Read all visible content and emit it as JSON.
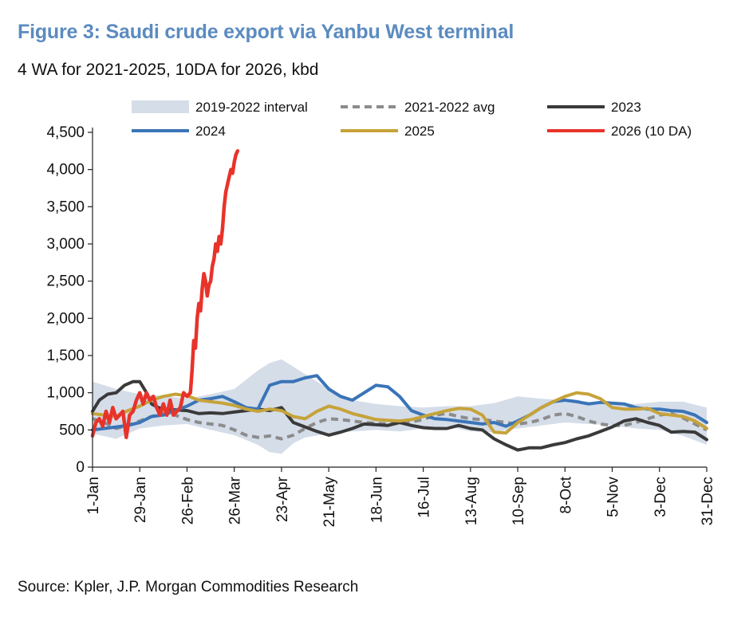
{
  "title": "Figure 3: Saudi crude export via Yanbu West terminal",
  "subtitle": "4 WA for 2021-2025, 10DA for 2026, kbd",
  "source": "Source: Kpler, J.P. Morgan Commodities Research",
  "colors": {
    "title": "#5b8bc0",
    "band": "#d5dde9",
    "avg": "#8c8c8c",
    "y2023": "#3a3a3a",
    "y2024": "#3a74b8",
    "y2025": "#c6a33a",
    "y2026": "#e8332a"
  },
  "chart_data": {
    "type": "line",
    "title": "Figure 3: Saudi crude export via Yanbu West terminal",
    "ylabel": "kbd",
    "xlabel": "",
    "ylim": [
      0,
      4500
    ],
    "xlim": [
      1,
      365
    ],
    "grid": false,
    "legend_position": "top",
    "y_ticks": [
      {
        "value": 0,
        "label": "0"
      },
      {
        "value": 500,
        "label": "500"
      },
      {
        "value": 1000,
        "label": "1,000"
      },
      {
        "value": 1500,
        "label": "1,500"
      },
      {
        "value": 2000,
        "label": "2,000"
      },
      {
        "value": 2500,
        "label": "2,500"
      },
      {
        "value": 3000,
        "label": "3,000"
      },
      {
        "value": 3500,
        "label": "3,500"
      },
      {
        "value": 4000,
        "label": "4,000"
      },
      {
        "value": 4500,
        "label": "4,500"
      }
    ],
    "x_ticks": [
      {
        "day": 1,
        "label": "1-Jan"
      },
      {
        "day": 29,
        "label": "29-Jan"
      },
      {
        "day": 57,
        "label": "26-Feb"
      },
      {
        "day": 85,
        "label": "26-Mar"
      },
      {
        "day": 113,
        "label": "23-Apr"
      },
      {
        "day": 141,
        "label": "21-May"
      },
      {
        "day": 169,
        "label": "18-Jun"
      },
      {
        "day": 197,
        "label": "16-Jul"
      },
      {
        "day": 225,
        "label": "13-Aug"
      },
      {
        "day": 253,
        "label": "10-Sep"
      },
      {
        "day": 281,
        "label": "8-Oct"
      },
      {
        "day": 309,
        "label": "5-Nov"
      },
      {
        "day": 337,
        "label": "3-Dec"
      },
      {
        "day": 365,
        "label": "31-Dec"
      }
    ],
    "band": {
      "name": "2019-2022 interval",
      "x": [
        1,
        15,
        29,
        43,
        57,
        71,
        85,
        99,
        106,
        113,
        120,
        127,
        141,
        155,
        169,
        183,
        197,
        211,
        225,
        239,
        253,
        267,
        281,
        295,
        309,
        323,
        337,
        351,
        365
      ],
      "low": [
        450,
        380,
        520,
        560,
        580,
        500,
        430,
        300,
        200,
        180,
        320,
        400,
        450,
        480,
        500,
        480,
        520,
        550,
        480,
        470,
        520,
        560,
        600,
        580,
        560,
        520,
        500,
        420,
        300
      ],
      "high": [
        1150,
        1050,
        980,
        960,
        920,
        980,
        1050,
        1300,
        1400,
        1450,
        1350,
        1250,
        1050,
        900,
        850,
        820,
        800,
        820,
        820,
        860,
        950,
        920,
        900,
        880,
        860,
        850,
        880,
        880,
        800
      ]
    },
    "series": [
      {
        "name": "2021-2022 avg",
        "style": "dashed",
        "x": [
          1,
          8,
          15,
          22,
          29,
          36,
          43,
          50,
          57,
          64,
          71,
          78,
          85,
          92,
          99,
          106,
          113,
          120,
          127,
          134,
          141,
          148,
          155,
          162,
          169,
          176,
          183,
          190,
          197,
          204,
          211,
          218,
          225,
          232,
          239,
          246,
          253,
          260,
          267,
          274,
          281,
          288,
          295,
          302,
          309,
          316,
          323,
          330,
          337,
          344,
          351,
          358,
          365
        ],
        "values": [
          650,
          600,
          520,
          560,
          620,
          680,
          720,
          700,
          640,
          600,
          580,
          560,
          500,
          430,
          400,
          420,
          380,
          430,
          520,
          600,
          650,
          640,
          620,
          600,
          590,
          580,
          600,
          610,
          640,
          700,
          720,
          680,
          650,
          640,
          620,
          600,
          580,
          600,
          640,
          700,
          720,
          680,
          620,
          580,
          560,
          560,
          600,
          650,
          700,
          720,
          660,
          580,
          500
        ]
      },
      {
        "name": "2023",
        "style": "solid",
        "x": [
          1,
          5,
          10,
          15,
          20,
          25,
          29,
          33,
          36,
          40,
          43,
          50,
          57,
          64,
          71,
          78,
          85,
          92,
          99,
          106,
          113,
          120,
          127,
          134,
          141,
          148,
          155,
          162,
          169,
          176,
          183,
          190,
          197,
          204,
          211,
          218,
          225,
          232,
          239,
          246,
          253,
          260,
          267,
          274,
          281,
          288,
          295,
          302,
          309,
          316,
          323,
          330,
          337,
          344,
          351,
          358,
          365
        ],
        "values": [
          750,
          900,
          980,
          1000,
          1100,
          1150,
          1150,
          1000,
          850,
          800,
          780,
          770,
          760,
          720,
          730,
          720,
          740,
          760,
          780,
          760,
          800,
          600,
          540,
          480,
          430,
          470,
          520,
          580,
          570,
          560,
          600,
          560,
          530,
          520,
          520,
          560,
          520,
          500,
          380,
          300,
          230,
          260,
          260,
          300,
          330,
          380,
          420,
          480,
          540,
          620,
          650,
          600,
          560,
          470,
          480,
          470,
          370
        ]
      },
      {
        "name": "2024",
        "style": "solid",
        "x": [
          1,
          8,
          15,
          22,
          29,
          36,
          43,
          50,
          57,
          64,
          71,
          78,
          85,
          92,
          99,
          106,
          113,
          120,
          127,
          134,
          141,
          148,
          155,
          162,
          169,
          176,
          183,
          190,
          197,
          204,
          211,
          218,
          225,
          232,
          239,
          246,
          253,
          260,
          267,
          274,
          281,
          288,
          295,
          302,
          309,
          316,
          323,
          330,
          337,
          344,
          351,
          358,
          365
        ],
        "values": [
          500,
          520,
          540,
          560,
          600,
          680,
          700,
          760,
          820,
          900,
          920,
          950,
          880,
          800,
          780,
          1100,
          1150,
          1150,
          1200,
          1230,
          1050,
          950,
          900,
          1000,
          1100,
          1080,
          950,
          760,
          700,
          650,
          640,
          620,
          600,
          580,
          600,
          550,
          620,
          700,
          800,
          880,
          900,
          880,
          850,
          870,
          860,
          850,
          800,
          780,
          780,
          760,
          750,
          700,
          600
        ]
      },
      {
        "name": "2025",
        "style": "solid",
        "x": [
          1,
          8,
          15,
          22,
          29,
          36,
          43,
          50,
          57,
          64,
          71,
          78,
          85,
          92,
          99,
          106,
          113,
          120,
          127,
          134,
          141,
          148,
          155,
          162,
          169,
          176,
          183,
          190,
          197,
          204,
          211,
          218,
          225,
          232,
          239,
          246,
          253,
          260,
          267,
          274,
          281,
          288,
          295,
          302,
          309,
          316,
          323,
          330,
          337,
          344,
          351,
          358,
          365
        ],
        "values": [
          720,
          700,
          680,
          760,
          820,
          900,
          950,
          980,
          960,
          900,
          880,
          860,
          830,
          780,
          750,
          780,
          760,
          680,
          650,
          750,
          820,
          780,
          720,
          680,
          640,
          630,
          620,
          640,
          680,
          720,
          760,
          790,
          780,
          700,
          470,
          460,
          600,
          700,
          800,
          880,
          950,
          1000,
          980,
          920,
          800,
          780,
          780,
          790,
          720,
          700,
          680,
          620,
          520
        ]
      },
      {
        "name": "2026 (10 DA)",
        "style": "solid",
        "x": [
          1,
          3,
          5,
          7,
          9,
          11,
          13,
          15,
          17,
          19,
          21,
          23,
          25,
          27,
          29,
          31,
          33,
          35,
          37,
          39,
          41,
          43,
          45,
          47,
          49,
          51,
          53,
          55,
          57,
          59,
          60,
          61,
          62,
          63,
          64,
          65,
          66,
          67,
          68,
          69,
          70,
          71,
          72,
          73,
          74,
          75,
          76,
          77,
          78,
          79,
          80,
          81,
          82,
          83,
          84,
          85,
          86,
          87
        ],
        "values": [
          420,
          600,
          650,
          550,
          750,
          600,
          800,
          650,
          700,
          750,
          400,
          700,
          750,
          900,
          1000,
          850,
          1000,
          900,
          950,
          800,
          700,
          850,
          700,
          900,
          700,
          750,
          800,
          1000,
          950,
          1000,
          1300,
          1700,
          1600,
          2000,
          2200,
          2100,
          2400,
          2600,
          2500,
          2300,
          2450,
          2500,
          2700,
          2800,
          3000,
          2900,
          3100,
          3000,
          3200,
          3500,
          3700,
          3800,
          3900,
          4000,
          3950,
          4100,
          4200,
          4250
        ]
      }
    ]
  },
  "legend": [
    {
      "key": "band",
      "label": "2019-2022 interval"
    },
    {
      "key": "avg",
      "label": "2021-2022 avg"
    },
    {
      "key": "y2023",
      "label": "2023"
    },
    {
      "key": "y2024",
      "label": "2024"
    },
    {
      "key": "y2025",
      "label": "2025"
    },
    {
      "key": "y2026",
      "label": "2026 (10 DA)"
    }
  ]
}
